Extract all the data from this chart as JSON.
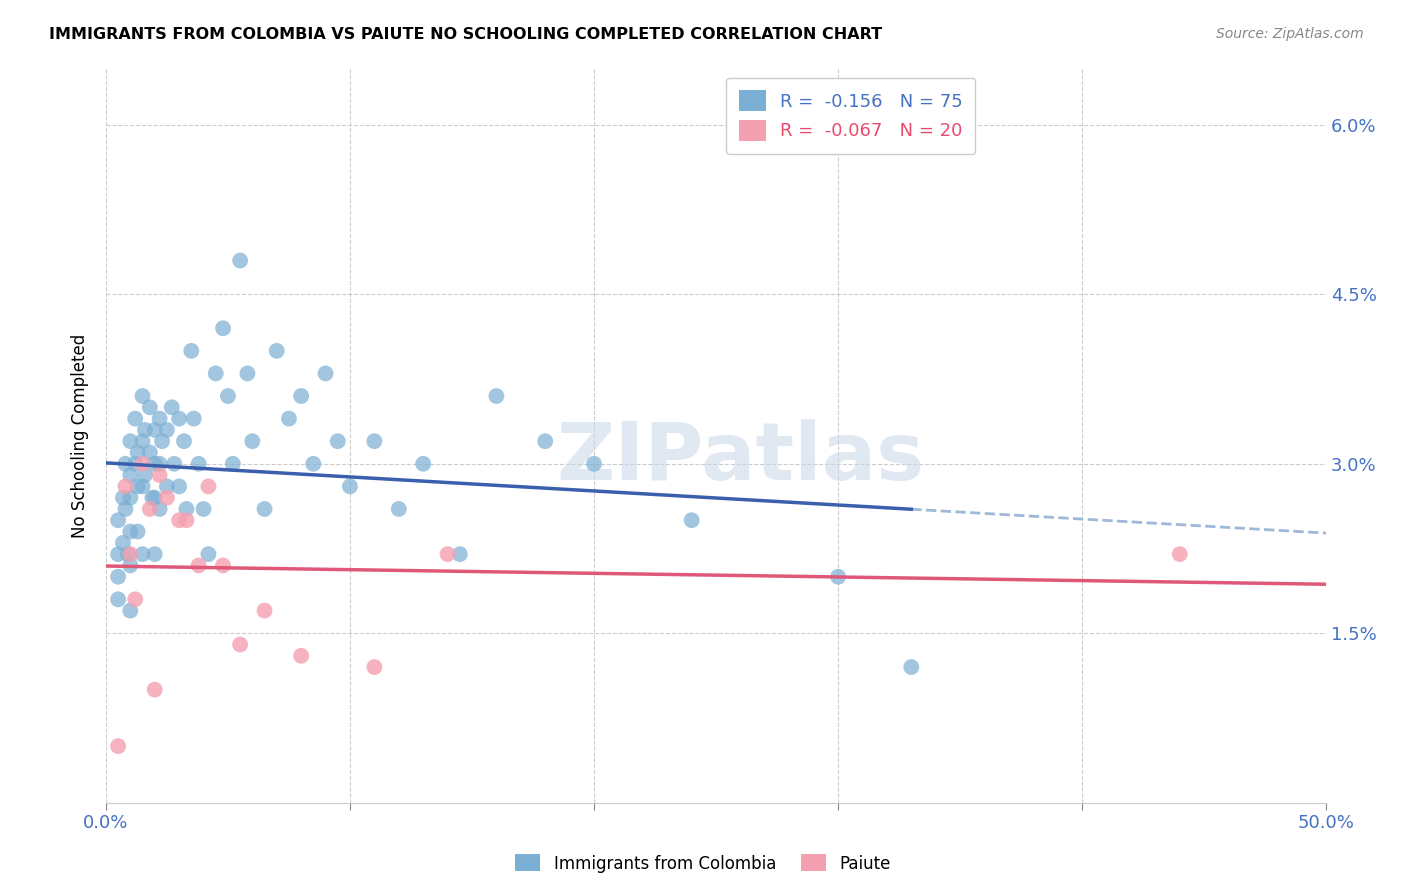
{
  "title": "IMMIGRANTS FROM COLOMBIA VS PAIUTE NO SCHOOLING COMPLETED CORRELATION CHART",
  "source": "Source: ZipAtlas.com",
  "ylabel": "No Schooling Completed",
  "xlim": [
    0.0,
    0.5
  ],
  "ylim": [
    0.0,
    0.065
  ],
  "colombia_R": "-0.156",
  "colombia_N": "75",
  "paiute_R": "-0.067",
  "paiute_N": "20",
  "colombia_color": "#7bafd4",
  "paiute_color": "#f4a0b0",
  "colombia_line_color": "#3a5fac",
  "paiute_line_color": "#e05878",
  "dashed_line_color": "#a0b8d8",
  "watermark_text": "ZIPatlas",
  "background_color": "#ffffff",
  "grid_color": "#cccccc",
  "colombia_points_x": [
    0.005,
    0.005,
    0.005,
    0.005,
    0.007,
    0.007,
    0.008,
    0.008,
    0.009,
    0.01,
    0.01,
    0.01,
    0.01,
    0.01,
    0.01,
    0.012,
    0.012,
    0.013,
    0.013,
    0.013,
    0.015,
    0.015,
    0.015,
    0.015,
    0.016,
    0.016,
    0.018,
    0.018,
    0.019,
    0.02,
    0.02,
    0.02,
    0.02,
    0.022,
    0.022,
    0.022,
    0.023,
    0.025,
    0.025,
    0.027,
    0.028,
    0.03,
    0.03,
    0.032,
    0.033,
    0.035,
    0.036,
    0.038,
    0.04,
    0.042,
    0.045,
    0.048,
    0.05,
    0.052,
    0.055,
    0.058,
    0.06,
    0.065,
    0.07,
    0.075,
    0.08,
    0.085,
    0.09,
    0.095,
    0.1,
    0.11,
    0.12,
    0.13,
    0.145,
    0.16,
    0.18,
    0.2,
    0.24,
    0.3,
    0.33
  ],
  "colombia_points_y": [
    0.025,
    0.022,
    0.02,
    0.018,
    0.027,
    0.023,
    0.03,
    0.026,
    0.022,
    0.032,
    0.029,
    0.027,
    0.024,
    0.021,
    0.017,
    0.034,
    0.03,
    0.031,
    0.028,
    0.024,
    0.036,
    0.032,
    0.028,
    0.022,
    0.033,
    0.029,
    0.035,
    0.031,
    0.027,
    0.033,
    0.03,
    0.027,
    0.022,
    0.034,
    0.03,
    0.026,
    0.032,
    0.033,
    0.028,
    0.035,
    0.03,
    0.034,
    0.028,
    0.032,
    0.026,
    0.04,
    0.034,
    0.03,
    0.026,
    0.022,
    0.038,
    0.042,
    0.036,
    0.03,
    0.048,
    0.038,
    0.032,
    0.026,
    0.04,
    0.034,
    0.036,
    0.03,
    0.038,
    0.032,
    0.028,
    0.032,
    0.026,
    0.03,
    0.022,
    0.036,
    0.032,
    0.03,
    0.025,
    0.02,
    0.012
  ],
  "paiute_points_x": [
    0.005,
    0.008,
    0.01,
    0.012,
    0.015,
    0.018,
    0.02,
    0.022,
    0.025,
    0.03,
    0.033,
    0.038,
    0.042,
    0.048,
    0.055,
    0.065,
    0.08,
    0.11,
    0.14,
    0.44
  ],
  "paiute_points_y": [
    0.005,
    0.028,
    0.022,
    0.018,
    0.03,
    0.026,
    0.01,
    0.029,
    0.027,
    0.025,
    0.025,
    0.021,
    0.028,
    0.021,
    0.014,
    0.017,
    0.013,
    0.012,
    0.022,
    0.022
  ]
}
